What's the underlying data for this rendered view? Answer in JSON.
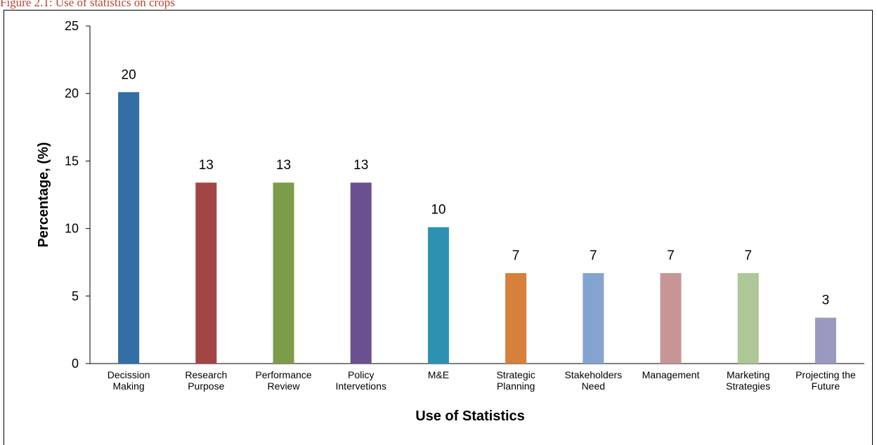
{
  "caption": "Figure 2.1: Use of statistics on crops",
  "chart_data": {
    "type": "bar",
    "title": "",
    "xlabel": "Use of Statistics",
    "ylabel": "Percentage, (%)",
    "ylim": [
      0,
      25
    ],
    "yticks": [
      0,
      5,
      10,
      15,
      20,
      25
    ],
    "grid": false,
    "legend": "none",
    "categories": [
      [
        "Decission",
        "Making"
      ],
      [
        "Research",
        "Purpose"
      ],
      [
        "Performance",
        "Review"
      ],
      [
        "Policy",
        "Intervetions"
      ],
      [
        "M&E"
      ],
      [
        "Strategic",
        "Planning"
      ],
      [
        "Stakeholders",
        "Need"
      ],
      [
        "Management"
      ],
      [
        "Marketing",
        "Strategies"
      ],
      [
        "Projecting the",
        "Future"
      ]
    ],
    "values": [
      20.1,
      13.4,
      13.4,
      13.4,
      10.1,
      6.7,
      6.7,
      6.7,
      6.7,
      3.4
    ],
    "data_labels": [
      "20",
      "13",
      "13",
      "13",
      "10",
      "7",
      "7",
      "7",
      "7",
      "3"
    ],
    "colors": [
      "#336ea5",
      "#a14644",
      "#7d9c4a",
      "#68518e",
      "#2d92b2",
      "#d6803b",
      "#84a4cf",
      "#c79595",
      "#acc798",
      "#9b99c0"
    ]
  }
}
